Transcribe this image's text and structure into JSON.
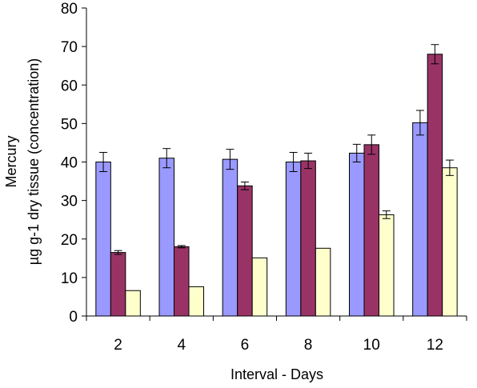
{
  "chart_data": {
    "type": "bar",
    "categories": [
      "2",
      "4",
      "6",
      "8",
      "10",
      "12"
    ],
    "series": [
      {
        "color": "#9999ff",
        "values": [
          40.0,
          41.0,
          40.7,
          40.0,
          42.3,
          50.2
        ],
        "errors": [
          2.5,
          2.5,
          2.6,
          2.5,
          2.3,
          3.2
        ]
      },
      {
        "color": "#993366",
        "values": [
          16.5,
          18.0,
          33.8,
          40.3,
          44.5,
          68.0
        ],
        "errors": [
          0.5,
          0.3,
          1.0,
          2.0,
          2.5,
          2.5
        ]
      },
      {
        "color": "#ffffcc",
        "values": [
          6.6,
          7.6,
          15.1,
          17.6,
          26.3,
          38.5
        ],
        "errors": [
          0,
          0,
          0,
          0,
          1.0,
          2.0
        ]
      }
    ],
    "xlabel": "Interval - Days",
    "ylabel_line1": "Mercury",
    "ylabel_line2": "µg g-1 dry tissue (concentration)",
    "ylim": [
      0,
      80
    ],
    "yticks": [
      0,
      10,
      20,
      30,
      40,
      50,
      60,
      70,
      80
    ],
    "grid": false,
    "legend": "none"
  }
}
